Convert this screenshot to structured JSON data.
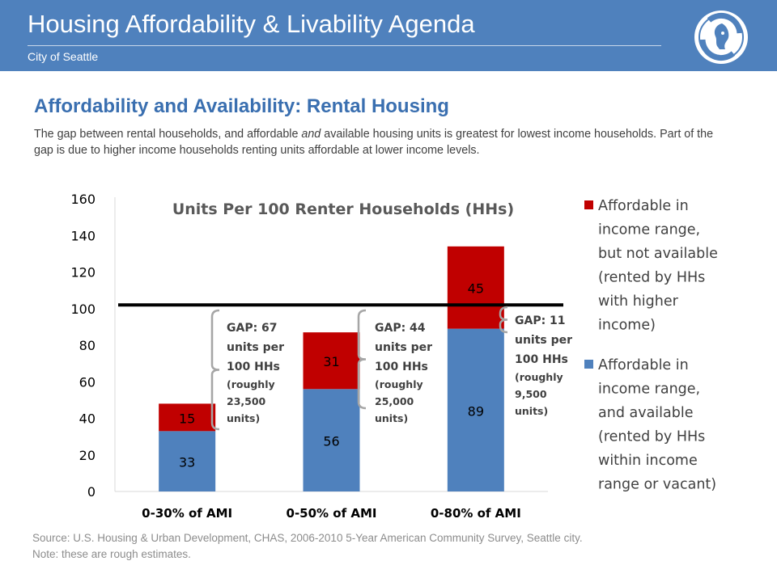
{
  "header": {
    "title": "Housing Affordability & Livability Agenda",
    "subtitle": "City of Seattle",
    "logo": "city-of-seattle-seal"
  },
  "slide": {
    "title": "Affordability and Availability: Rental Housing",
    "intro_before": "The gap between rental households, and affordable ",
    "intro_em": "and",
    "intro_after": " available housing units is greatest for lowest income households. Part of the gap is due to higher income households renting units affordable at lower income levels."
  },
  "chart_data": {
    "type": "bar",
    "stacked": true,
    "title": "Units Per 100 Renter Households (HHs)",
    "categories": [
      "0-30% of AMI",
      "0-50% of AMI",
      "0-80% of AMI"
    ],
    "series": [
      {
        "name": "Affordable in income range, and available (rented by HHs within income range or vacant)",
        "values": [
          33,
          56,
          89
        ],
        "color": "#4f81bd"
      },
      {
        "name": "Affordable in income range, but not available (rented by HHs with higher income)",
        "values": [
          15,
          31,
          45
        ],
        "color": "#c00000"
      }
    ],
    "ylim": [
      0,
      160
    ],
    "yticks": [
      0,
      20,
      40,
      60,
      80,
      100,
      120,
      140,
      160
    ],
    "reference_line": 102,
    "legend_position": "right",
    "grid": false,
    "annotations": [
      {
        "lines": [
          "GAP: 67",
          "units per",
          "100 HHs",
          "(roughly",
          "23,500",
          "units)"
        ]
      },
      {
        "lines": [
          "GAP: 44",
          "units per",
          "100 HHs",
          "(roughly",
          "25,000",
          "units)"
        ]
      },
      {
        "lines": [
          "GAP: 11",
          "units per",
          "100 HHs",
          "(roughly",
          "9,500",
          "units)"
        ]
      }
    ]
  },
  "footer": {
    "source": "Source: U.S. Housing & Urban Development, CHAS, 2006-2010 5-Year American Community Survey, Seattle city.",
    "note": "Note: these are rough estimates."
  }
}
